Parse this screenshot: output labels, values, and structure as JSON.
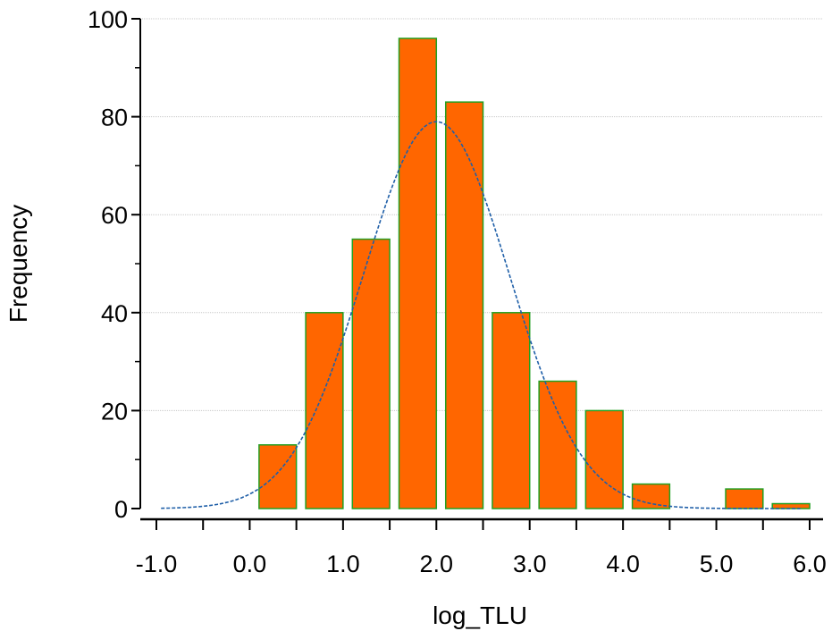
{
  "chart_data": {
    "type": "bar",
    "xlabel": "log_TLU",
    "ylabel": "Frequency",
    "xlim": [
      -1.0,
      6.0
    ],
    "ylim": [
      0,
      100
    ],
    "x_ticks_major": [
      "-1.0",
      "0.0",
      "1.0",
      "2.0",
      "3.0",
      "4.0",
      "5.0",
      "6.0"
    ],
    "y_ticks": [
      "0",
      "20",
      "40",
      "60",
      "80",
      "100"
    ],
    "grid": "horizontal",
    "bins": [
      {
        "x0": 0.1,
        "x1": 0.5,
        "value": 13
      },
      {
        "x0": 0.6,
        "x1": 1.0,
        "value": 40
      },
      {
        "x0": 1.1,
        "x1": 1.5,
        "value": 55
      },
      {
        "x0": 1.6,
        "x1": 2.0,
        "value": 96
      },
      {
        "x0": 2.1,
        "x1": 2.5,
        "value": 83
      },
      {
        "x0": 2.6,
        "x1": 3.0,
        "value": 40
      },
      {
        "x0": 3.1,
        "x1": 3.5,
        "value": 26
      },
      {
        "x0": 3.6,
        "x1": 4.0,
        "value": 20
      },
      {
        "x0": 4.1,
        "x1": 4.5,
        "value": 5
      },
      {
        "x0": 5.1,
        "x1": 5.5,
        "value": 4
      },
      {
        "x0": 5.6,
        "x1": 6.0,
        "value": 1
      }
    ],
    "normal_curve": {
      "mean": 2.0,
      "sd": 0.78,
      "peak": 79,
      "x_range": [
        -0.95,
        5.9
      ]
    },
    "colors": {
      "bar_fill": "#FF6600",
      "bar_stroke": "#22A022",
      "curve": "#1F5FA8",
      "grid": "#C8C8C8",
      "axis": "#000000"
    }
  }
}
